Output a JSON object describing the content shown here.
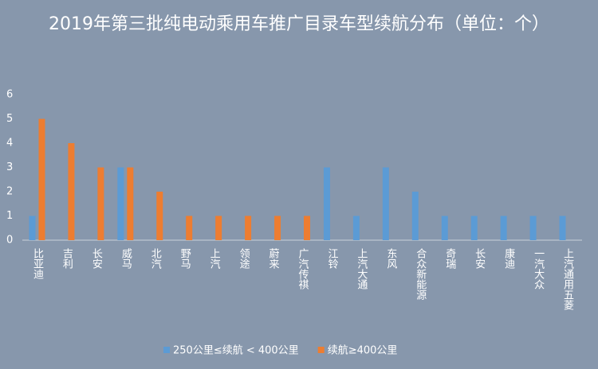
{
  "chart_data": {
    "type": "bar",
    "title": "2019年第三批纯电动乘用车推广目录车型续航分布（单位：个）",
    "categories": [
      "比亚迪",
      "吉利",
      "长安",
      "威马",
      "北汽",
      "野马",
      "上汽",
      "领途",
      "蔚来",
      "广汽传祺",
      "江铃",
      "上汽大通",
      "东风",
      "合众新能源",
      "奇瑞",
      "长安",
      "康迪",
      "一汽大众",
      "上汽通用五菱"
    ],
    "series": [
      {
        "name": "250公里≤续航 < 400公里",
        "color": "#5b9bd5",
        "values": [
          1,
          0,
          0,
          3,
          0,
          0,
          0,
          0,
          0,
          0,
          3,
          1,
          3,
          2,
          1,
          1,
          1,
          1,
          1
        ]
      },
      {
        "name": "续航≥400公里",
        "color": "#ed7d31",
        "values": [
          5,
          4,
          3,
          3,
          2,
          1,
          1,
          1,
          1,
          1,
          0,
          0,
          0,
          0,
          0,
          0,
          0,
          0,
          0
        ]
      }
    ],
    "ylim": [
      0,
      6
    ],
    "yticks": [
      0,
      1,
      2,
      3,
      4,
      5,
      6
    ],
    "grid": false
  }
}
